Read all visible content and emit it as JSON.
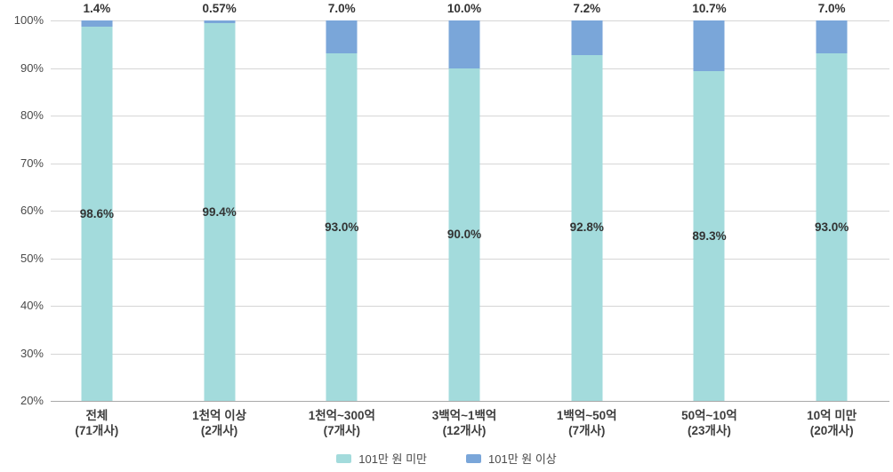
{
  "chart_data": {
    "type": "bar",
    "variant": "stacked-100-percent",
    "title": "",
    "xlabel": "",
    "ylabel": "",
    "grid": true,
    "y_axis": {
      "min": 20,
      "max": 100,
      "step": 10,
      "tick_suffix": "%",
      "ticks": [
        "100%",
        "90%",
        "80%",
        "70%",
        "60%",
        "50%",
        "40%",
        "30%",
        "20%"
      ]
    },
    "categories": [
      {
        "name": "전체",
        "count": "(71개사)"
      },
      {
        "name": "1천억 이상",
        "count": "(2개사)"
      },
      {
        "name": "1천억~300억",
        "count": "(7개사)"
      },
      {
        "name": "3백억~1백억",
        "count": "(12개사)"
      },
      {
        "name": "1백억~50억",
        "count": "(7개사)"
      },
      {
        "name": "50억~10억",
        "count": "(23개사)"
      },
      {
        "name": "10억 미만",
        "count": "(20개사)"
      }
    ],
    "series": [
      {
        "name": "101만 원 미만",
        "color": "#A3DBDC",
        "values": [
          98.6,
          99.4,
          93.0,
          90.0,
          92.8,
          89.3,
          93.0
        ],
        "labels": [
          "98.6%",
          "99.4%",
          "93.0%",
          "90.0%",
          "92.8%",
          "89.3%",
          "93.0%"
        ]
      },
      {
        "name": "101만 원 이상",
        "color": "#7AA6D9",
        "values": [
          1.4,
          0.57,
          7.0,
          10.0,
          7.2,
          10.7,
          7.0
        ],
        "labels": [
          "1.4%",
          "0.57%",
          "7.0%",
          "10.0%",
          "7.2%",
          "10.7%",
          "7.0%"
        ]
      }
    ],
    "legend": {
      "position": "bottom"
    },
    "colors": {
      "grid": "#d6d6d6",
      "baseline": "#a8a8a8",
      "text": "#3d3d3d"
    }
  }
}
